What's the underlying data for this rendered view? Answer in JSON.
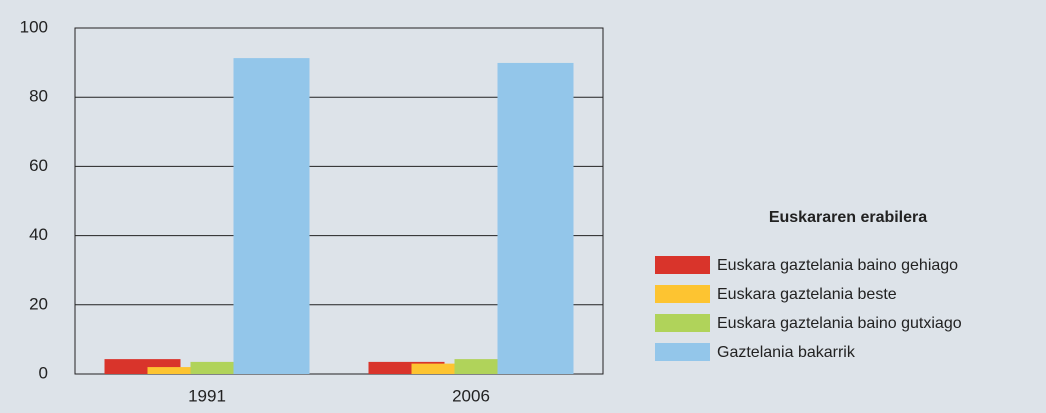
{
  "chart_data": {
    "type": "bar",
    "categories": [
      "1991",
      "2006"
    ],
    "legend_title": "Euskararen erabilera",
    "series": [
      {
        "name": "Euskara gaztelania baino gehiago",
        "color": "#d9342b",
        "values": [
          4.3,
          3.5
        ]
      },
      {
        "name": "Euskara gaztelania beste",
        "color": "#fdc431",
        "values": [
          2,
          3
        ]
      },
      {
        "name": "Euskara gaztelania baino gutxiago",
        "color": "#b0d35a",
        "values": [
          3.5,
          4.3
        ]
      },
      {
        "name": "Gaztelania bakarrik",
        "color": "#93c6ea",
        "values": [
          91.3,
          89.9
        ]
      }
    ],
    "ylim": [
      0,
      100
    ],
    "yticks": [
      0,
      20,
      40,
      60,
      80,
      100
    ],
    "grid": true,
    "legend": "right"
  }
}
